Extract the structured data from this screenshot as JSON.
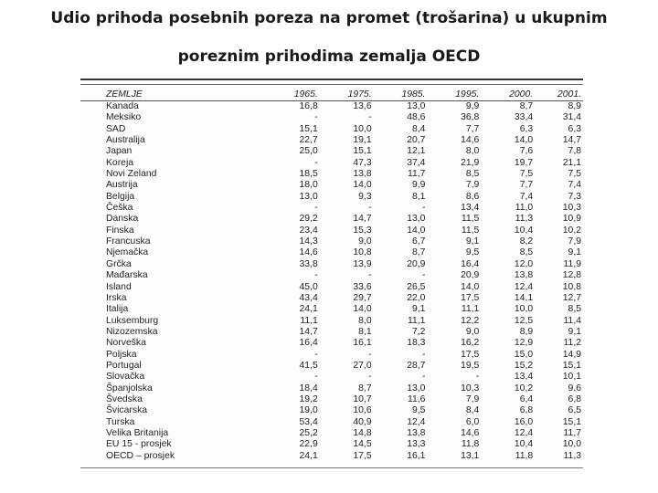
{
  "title_line1": "Udio prihoda posebnih poreza na promet (trošarina) u ukupnim",
  "title_line2": "poreznim prihodima zemalja OECD",
  "table": {
    "headers": [
      "ZEMLJE",
      "1965.",
      "1975.",
      "1985.",
      "1995.",
      "2000.",
      "2001."
    ],
    "rows": [
      [
        "Kanada",
        "16,8",
        "13,6",
        "13,0",
        "9,9",
        "8,7",
        "8,9"
      ],
      [
        "Meksiko",
        "-",
        "-",
        "48,6",
        "36,8",
        "33,4",
        "31,4"
      ],
      [
        "SAD",
        "15,1",
        "10,0",
        "8,4",
        "7,7",
        "6,3",
        "6,3"
      ],
      [
        "Australija",
        "22,7",
        "19,1",
        "20,7",
        "14,6",
        "14,0",
        "14,7"
      ],
      [
        "Japan",
        "25,0",
        "15,1",
        "12,1",
        "8,0",
        "7,6",
        "7,8"
      ],
      [
        "Koreja",
        "-",
        "47,3",
        "37,4",
        "21,9",
        "19,7",
        "21,1"
      ],
      [
        "Novi Zeland",
        "18,5",
        "13,8",
        "11,7",
        "8,5",
        "7,5",
        "7,5"
      ],
      [
        "Austrija",
        "18,0",
        "14,0",
        "9,9",
        "7,9",
        "7,7",
        "7,4"
      ],
      [
        "Belgija",
        "13,0",
        "9,3",
        "8,1",
        "8,6",
        "7,4",
        "7,3"
      ],
      [
        "Češka",
        "-",
        "-",
        "-",
        "13,4",
        "11,0",
        "10,3"
      ],
      [
        "Danska",
        "29,2",
        "14,7",
        "13,0",
        "11,5",
        "11,3",
        "10,9"
      ],
      [
        "Finska",
        "23,4",
        "15,3",
        "14,0",
        "11,5",
        "10,4",
        "10,2"
      ],
      [
        "Francuska",
        "14,3",
        "9,0",
        "6,7",
        "9,1",
        "8,2",
        "7,9"
      ],
      [
        "Njemačka",
        "14,6",
        "10,8",
        "8,7",
        "9,5",
        "8,5",
        "9,1"
      ],
      [
        "Grčka",
        "33,8",
        "13,9",
        "20,9",
        "16,4",
        "12,0",
        "11,9"
      ],
      [
        "Mađarska",
        "-",
        "-",
        "-",
        "20,9",
        "13,8",
        "12,8"
      ],
      [
        "Island",
        "45,0",
        "33,6",
        "26,5",
        "14,0",
        "12,4",
        "10,8"
      ],
      [
        "Irska",
        "43,4",
        "29,7",
        "22,0",
        "17,5",
        "14,1",
        "12,7"
      ],
      [
        "Italija",
        "24,1",
        "14,0",
        "9,1",
        "11,1",
        "10,0",
        "8,5"
      ],
      [
        "Luksemburg",
        "11,1",
        "8,0",
        "11,1",
        "12,2",
        "12,5",
        "11,4"
      ],
      [
        "Nizozemska",
        "14,7",
        "8,1",
        "7,2",
        "9,0",
        "8,9",
        "9,1"
      ],
      [
        "Norveška",
        "16,4",
        "16,1",
        "18,3",
        "16,2",
        "12,9",
        "11,2"
      ],
      [
        "Poljska",
        "-",
        "-",
        "-",
        "17,5",
        "15,0",
        "14,9"
      ],
      [
        "Portugal",
        "41,5",
        "27,0",
        "28,7",
        "19,5",
        "15,2",
        "15,1"
      ],
      [
        "Slovačka",
        "-",
        "-",
        "-",
        "-",
        "13,4",
        "10,1"
      ],
      [
        "Španjolska",
        "18,4",
        "8,7",
        "13,0",
        "10,3",
        "10,2",
        "9,6"
      ],
      [
        "Švedska",
        "19,2",
        "10,7",
        "11,6",
        "7,9",
        "6,4",
        "6,8"
      ],
      [
        "Švicarska",
        "19,0",
        "10,6",
        "9,5",
        "8,4",
        "6,8",
        "6,5"
      ],
      [
        "Turska",
        "53,4",
        "40,9",
        "12,4",
        "6,0",
        "16,0",
        "15,1"
      ],
      [
        "Velika Britanija",
        "25,2",
        "14,8",
        "13,8",
        "14,6",
        "12,4",
        "11,7"
      ],
      [
        "EU 15 - prosjek",
        "22,9",
        "14,5",
        "13,3",
        "11,8",
        "10,4",
        "10,0"
      ],
      [
        "OECD – prosjek",
        "24,1",
        "17,5",
        "16,1",
        "13,1",
        "11,8",
        "11,3"
      ]
    ]
  }
}
